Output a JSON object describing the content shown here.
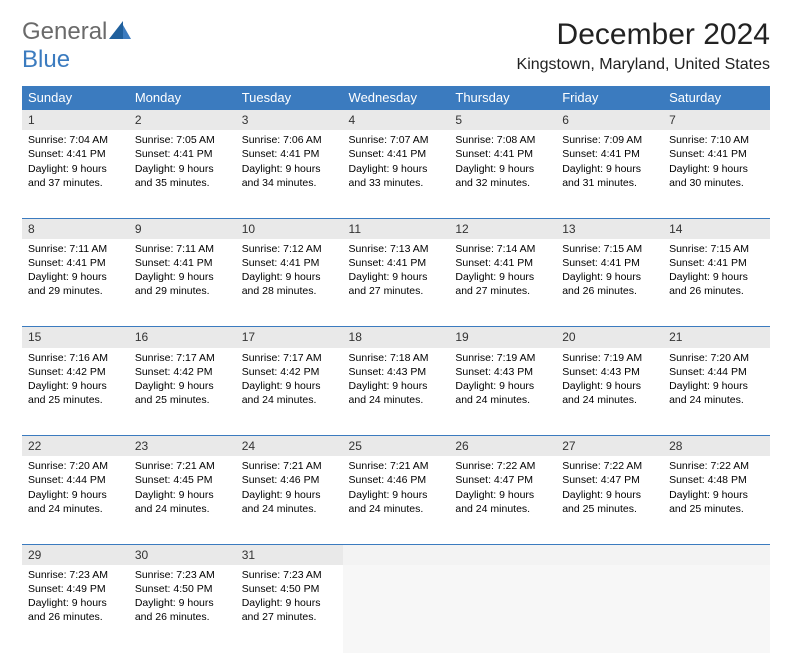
{
  "logo": {
    "text1": "General",
    "text2": "Blue",
    "accent": "#3b7bbf",
    "gray": "#6a6a6a"
  },
  "title": "December 2024",
  "location": "Kingstown, Maryland, United States",
  "colors": {
    "header_bg": "#3b7bbf",
    "header_text": "#ffffff",
    "daynum_bg": "#e9e9e9",
    "empty_bg": "#f7f7f7",
    "border": "#3b7bbf"
  },
  "weekdays": [
    "Sunday",
    "Monday",
    "Tuesday",
    "Wednesday",
    "Thursday",
    "Friday",
    "Saturday"
  ],
  "weeks": [
    [
      {
        "num": "1",
        "sunrise": "Sunrise: 7:04 AM",
        "sunset": "Sunset: 4:41 PM",
        "daylight": "Daylight: 9 hours and 37 minutes."
      },
      {
        "num": "2",
        "sunrise": "Sunrise: 7:05 AM",
        "sunset": "Sunset: 4:41 PM",
        "daylight": "Daylight: 9 hours and 35 minutes."
      },
      {
        "num": "3",
        "sunrise": "Sunrise: 7:06 AM",
        "sunset": "Sunset: 4:41 PM",
        "daylight": "Daylight: 9 hours and 34 minutes."
      },
      {
        "num": "4",
        "sunrise": "Sunrise: 7:07 AM",
        "sunset": "Sunset: 4:41 PM",
        "daylight": "Daylight: 9 hours and 33 minutes."
      },
      {
        "num": "5",
        "sunrise": "Sunrise: 7:08 AM",
        "sunset": "Sunset: 4:41 PM",
        "daylight": "Daylight: 9 hours and 32 minutes."
      },
      {
        "num": "6",
        "sunrise": "Sunrise: 7:09 AM",
        "sunset": "Sunset: 4:41 PM",
        "daylight": "Daylight: 9 hours and 31 minutes."
      },
      {
        "num": "7",
        "sunrise": "Sunrise: 7:10 AM",
        "sunset": "Sunset: 4:41 PM",
        "daylight": "Daylight: 9 hours and 30 minutes."
      }
    ],
    [
      {
        "num": "8",
        "sunrise": "Sunrise: 7:11 AM",
        "sunset": "Sunset: 4:41 PM",
        "daylight": "Daylight: 9 hours and 29 minutes."
      },
      {
        "num": "9",
        "sunrise": "Sunrise: 7:11 AM",
        "sunset": "Sunset: 4:41 PM",
        "daylight": "Daylight: 9 hours and 29 minutes."
      },
      {
        "num": "10",
        "sunrise": "Sunrise: 7:12 AM",
        "sunset": "Sunset: 4:41 PM",
        "daylight": "Daylight: 9 hours and 28 minutes."
      },
      {
        "num": "11",
        "sunrise": "Sunrise: 7:13 AM",
        "sunset": "Sunset: 4:41 PM",
        "daylight": "Daylight: 9 hours and 27 minutes."
      },
      {
        "num": "12",
        "sunrise": "Sunrise: 7:14 AM",
        "sunset": "Sunset: 4:41 PM",
        "daylight": "Daylight: 9 hours and 27 minutes."
      },
      {
        "num": "13",
        "sunrise": "Sunrise: 7:15 AM",
        "sunset": "Sunset: 4:41 PM",
        "daylight": "Daylight: 9 hours and 26 minutes."
      },
      {
        "num": "14",
        "sunrise": "Sunrise: 7:15 AM",
        "sunset": "Sunset: 4:41 PM",
        "daylight": "Daylight: 9 hours and 26 minutes."
      }
    ],
    [
      {
        "num": "15",
        "sunrise": "Sunrise: 7:16 AM",
        "sunset": "Sunset: 4:42 PM",
        "daylight": "Daylight: 9 hours and 25 minutes."
      },
      {
        "num": "16",
        "sunrise": "Sunrise: 7:17 AM",
        "sunset": "Sunset: 4:42 PM",
        "daylight": "Daylight: 9 hours and 25 minutes."
      },
      {
        "num": "17",
        "sunrise": "Sunrise: 7:17 AM",
        "sunset": "Sunset: 4:42 PM",
        "daylight": "Daylight: 9 hours and 24 minutes."
      },
      {
        "num": "18",
        "sunrise": "Sunrise: 7:18 AM",
        "sunset": "Sunset: 4:43 PM",
        "daylight": "Daylight: 9 hours and 24 minutes."
      },
      {
        "num": "19",
        "sunrise": "Sunrise: 7:19 AM",
        "sunset": "Sunset: 4:43 PM",
        "daylight": "Daylight: 9 hours and 24 minutes."
      },
      {
        "num": "20",
        "sunrise": "Sunrise: 7:19 AM",
        "sunset": "Sunset: 4:43 PM",
        "daylight": "Daylight: 9 hours and 24 minutes."
      },
      {
        "num": "21",
        "sunrise": "Sunrise: 7:20 AM",
        "sunset": "Sunset: 4:44 PM",
        "daylight": "Daylight: 9 hours and 24 minutes."
      }
    ],
    [
      {
        "num": "22",
        "sunrise": "Sunrise: 7:20 AM",
        "sunset": "Sunset: 4:44 PM",
        "daylight": "Daylight: 9 hours and 24 minutes."
      },
      {
        "num": "23",
        "sunrise": "Sunrise: 7:21 AM",
        "sunset": "Sunset: 4:45 PM",
        "daylight": "Daylight: 9 hours and 24 minutes."
      },
      {
        "num": "24",
        "sunrise": "Sunrise: 7:21 AM",
        "sunset": "Sunset: 4:46 PM",
        "daylight": "Daylight: 9 hours and 24 minutes."
      },
      {
        "num": "25",
        "sunrise": "Sunrise: 7:21 AM",
        "sunset": "Sunset: 4:46 PM",
        "daylight": "Daylight: 9 hours and 24 minutes."
      },
      {
        "num": "26",
        "sunrise": "Sunrise: 7:22 AM",
        "sunset": "Sunset: 4:47 PM",
        "daylight": "Daylight: 9 hours and 24 minutes."
      },
      {
        "num": "27",
        "sunrise": "Sunrise: 7:22 AM",
        "sunset": "Sunset: 4:47 PM",
        "daylight": "Daylight: 9 hours and 25 minutes."
      },
      {
        "num": "28",
        "sunrise": "Sunrise: 7:22 AM",
        "sunset": "Sunset: 4:48 PM",
        "daylight": "Daylight: 9 hours and 25 minutes."
      }
    ],
    [
      {
        "num": "29",
        "sunrise": "Sunrise: 7:23 AM",
        "sunset": "Sunset: 4:49 PM",
        "daylight": "Daylight: 9 hours and 26 minutes."
      },
      {
        "num": "30",
        "sunrise": "Sunrise: 7:23 AM",
        "sunset": "Sunset: 4:50 PM",
        "daylight": "Daylight: 9 hours and 26 minutes."
      },
      {
        "num": "31",
        "sunrise": "Sunrise: 7:23 AM",
        "sunset": "Sunset: 4:50 PM",
        "daylight": "Daylight: 9 hours and 27 minutes."
      },
      null,
      null,
      null,
      null
    ]
  ]
}
